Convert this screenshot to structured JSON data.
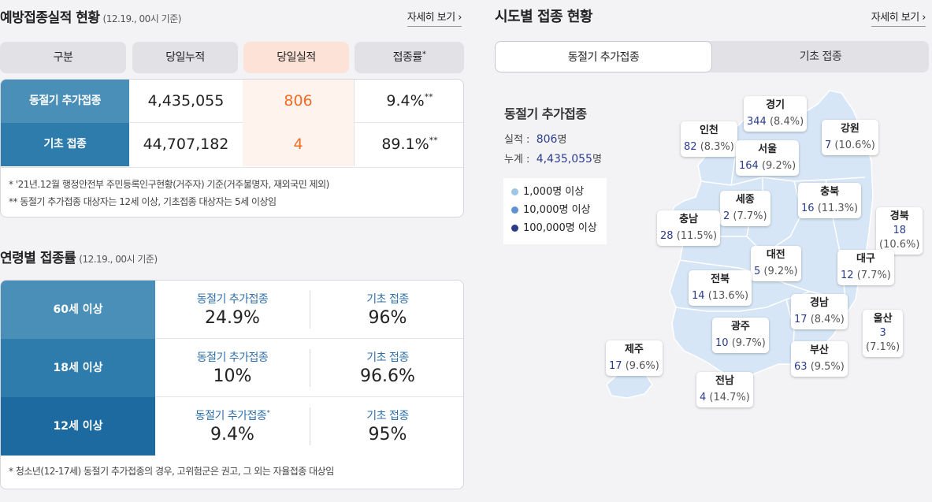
{
  "left": {
    "vaccination": {
      "title": "예방접종실적 현황",
      "date": "(12.19., 00시 기준)",
      "more": "자세히 보기 ›",
      "headers": [
        "구분",
        "당일누적",
        "당일실적",
        "접종률"
      ],
      "header_sup": "*",
      "rows": [
        {
          "label": "동절기 추가접종",
          "cumulative": "4,435,055",
          "today": "806",
          "rate": "9.4%",
          "sup": "**"
        },
        {
          "label": "기초 접종",
          "cumulative": "44,707,182",
          "today": "4",
          "rate": "89.1%",
          "sup": "**"
        }
      ],
      "notes": [
        "* '21년.12월 행정안전부 주민등록인구현황(거주자) 기준(거주불명자, 재외국민 제외)",
        "** 동절기 추가접종 대상자는 12세 이상, 기초접종 대상자는 5세 이상임"
      ]
    },
    "age": {
      "title": "연령별 접종률",
      "date": "(12.19., 00시 기준)",
      "rows": [
        {
          "label": "60세 이상",
          "col1_title": "동절기 추가접종",
          "col1_value": "24.9%",
          "col1_sup": "",
          "col2_title": "기초 접종",
          "col2_value": "96%"
        },
        {
          "label": "18세 이상",
          "col1_title": "동절기 추가접종",
          "col1_value": "10%",
          "col1_sup": "",
          "col2_title": "기초 접종",
          "col2_value": "96.6%"
        },
        {
          "label": "12세 이상",
          "col1_title": "동절기 추가접종",
          "col1_value": "9.4%",
          "col1_sup": "*",
          "col2_title": "기초 접종",
          "col2_value": "95%"
        }
      ],
      "note": "* 청소년(12-17세) 동절기 추가접종의 경우, 고위험군은 권고, 그 외는 자율접종 대상임"
    }
  },
  "right": {
    "title": "시도별 접종 현황",
    "more": "자세히 보기 ›",
    "tabs": [
      "동절기 추가접종",
      "기초 접종"
    ],
    "info": {
      "title": "동절기 추가접종",
      "today_label": "실적 :",
      "today_value": "806",
      "total_label": "누계 :",
      "total_value": "4,435,055",
      "unit": "명"
    },
    "legend": [
      {
        "label": "1,000명 이상",
        "color": "#9cc5e6"
      },
      {
        "label": "10,000명 이상",
        "color": "#5b93d6"
      },
      {
        "label": "100,000명 이상",
        "color": "#2b3c8f"
      }
    ],
    "colors": {
      "map_fill": "#d6e6f6",
      "map_border": "#ffffff",
      "count": "#2b3c8f"
    },
    "regions": [
      {
        "name": "경기",
        "count": "344",
        "pct": "(8.4%)"
      },
      {
        "name": "인천",
        "count": "82",
        "pct": "(8.3%)"
      },
      {
        "name": "서울",
        "count": "164",
        "pct": "(9.2%)"
      },
      {
        "name": "강원",
        "count": "7",
        "pct": "(10.6%)"
      },
      {
        "name": "세종",
        "count": "2",
        "pct": "(7.7%)"
      },
      {
        "name": "충북",
        "count": "16",
        "pct": "(11.3%)"
      },
      {
        "name": "충남",
        "count": "28",
        "pct": "(11.5%)"
      },
      {
        "name": "경북",
        "count": "18",
        "pct": "(10.6%)"
      },
      {
        "name": "대전",
        "count": "5",
        "pct": "(9.2%)"
      },
      {
        "name": "대구",
        "count": "12",
        "pct": "(7.7%)"
      },
      {
        "name": "전북",
        "count": "14",
        "pct": "(13.6%)"
      },
      {
        "name": "경남",
        "count": "17",
        "pct": "(8.4%)"
      },
      {
        "name": "울산",
        "count": "3",
        "pct": "(7.1%)"
      },
      {
        "name": "광주",
        "count": "10",
        "pct": "(9.7%)"
      },
      {
        "name": "제주",
        "count": "17",
        "pct": "(9.6%)"
      },
      {
        "name": "부산",
        "count": "63",
        "pct": "(9.5%)"
      },
      {
        "name": "전남",
        "count": "4",
        "pct": "(14.7%)"
      }
    ]
  }
}
